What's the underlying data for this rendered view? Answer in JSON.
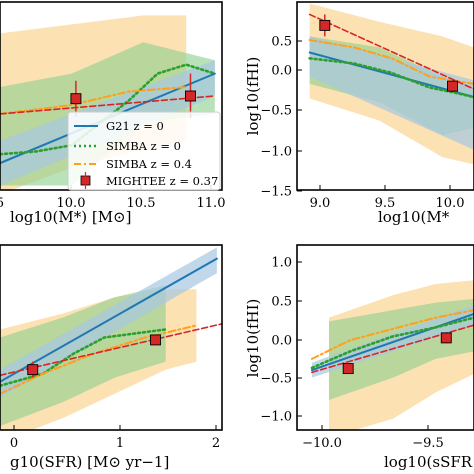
{
  "colors": {
    "g21_line": "#1f77b4",
    "g21_band": "#a6c8e3",
    "simba0_line": "#2ca02c",
    "simba0_band": "#8ccf8c",
    "simba04_line": "#ff9f1c",
    "simba04_band": "#fbd79a",
    "mightee_line": "#d62728",
    "mightee_marker": "#d62728"
  },
  "legend": {
    "g21": "G21 z = 0",
    "simba0": "SIMBA z = 0",
    "simba04": "SIMBA z = 0.4",
    "mightee": "MIGHTEE z = 0.37"
  },
  "panels": {
    "tl": {
      "xlabel": "log10(M*) [M⊙]",
      "xticks": [
        "5",
        "10.0",
        "10.5",
        "11.0"
      ]
    },
    "tr": {
      "ylabel": "log10(fHI)",
      "xlabel": "log10(M*",
      "xticks": [
        "9.0",
        "9.5",
        "10.0"
      ],
      "yticks": [
        "0.5",
        "0.0",
        "−0.5",
        "−1.0",
        "−1.5"
      ]
    },
    "bl": {
      "xlabel": "g10(SFR) [M⊙ yr−1]",
      "xticks": [
        "0",
        "1",
        "2"
      ]
    },
    "br": {
      "ylabel": "log10(fHI)",
      "xlabel": "log10(sSFR",
      "xticks": [
        "−10.0",
        "−9.5"
      ],
      "yticks": [
        "1.0",
        "0.5",
        "0.0",
        "−0.5",
        "−1.0"
      ]
    }
  },
  "chart_data": [
    {
      "panel": "tl",
      "type": "line",
      "xlabel": "log10(M*) [M⊙]",
      "ylabel": "",
      "xlim": [
        9.5,
        11.05
      ],
      "ylim": [
        -0.85,
        1.25
      ],
      "series": [
        {
          "name": "G21 z = 0",
          "x": [
            9.5,
            11.0
          ],
          "y": [
            -0.55,
            0.45
          ]
        },
        {
          "name": "SIMBA z = 0",
          "x": [
            9.5,
            9.75,
            10.0,
            10.2,
            10.4,
            10.6,
            10.8,
            11.0
          ],
          "y": [
            -0.45,
            -0.42,
            -0.35,
            -0.1,
            0.15,
            0.45,
            0.55,
            0.45
          ]
        },
        {
          "name": "SIMBA z = 0.4",
          "x": [
            9.5,
            10.0,
            10.4,
            10.8
          ],
          "y": [
            0.0,
            0.1,
            0.25,
            0.3
          ]
        },
        {
          "name": "MIGHTEE z = 0.37",
          "x": [
            9.5,
            11.0
          ],
          "y": [
            0.0,
            0.2
          ]
        }
      ],
      "mightee_points": {
        "x": [
          10.03,
          10.83
        ],
        "y": [
          0.17,
          0.2
        ],
        "yerr": [
          0.2,
          0.25
        ]
      },
      "bands": [
        {
          "series": "SIMBA z = 0.4",
          "x": [
            9.5,
            10.0,
            10.5,
            10.8
          ],
          "lo": [
            -0.9,
            -0.6,
            -0.4,
            -0.3
          ],
          "hi": [
            0.9,
            1.0,
            1.1,
            1.1
          ]
        },
        {
          "series": "SIMBA z = 0",
          "x": [
            9.5,
            10.0,
            10.5,
            11.0
          ],
          "lo": [
            -0.8,
            -0.8,
            -0.1,
            0.0
          ],
          "hi": [
            0.3,
            0.45,
            0.8,
            0.6
          ]
        },
        {
          "series": "G21 z = 0",
          "x": [
            9.5,
            11.0
          ],
          "lo": [
            -0.8,
            0.2
          ],
          "hi": [
            -0.3,
            0.6
          ]
        }
      ]
    },
    {
      "panel": "tr",
      "type": "line",
      "xlabel": "log10(M*",
      "ylabel": "log10(fHI)",
      "xlim": [
        8.85,
        10.25
      ],
      "ylim": [
        -1.75,
        0.82
      ],
      "series": [
        {
          "name": "G21 z = 0",
          "x": [
            8.95,
            10.25
          ],
          "y": [
            0.13,
            -0.48
          ]
        },
        {
          "name": "SIMBA z = 0",
          "x": [
            8.95,
            9.3,
            9.6,
            9.9,
            10.1,
            10.25
          ],
          "y": [
            0.05,
            -0.02,
            -0.15,
            -0.35,
            -0.42,
            -0.48
          ]
        },
        {
          "name": "SIMBA z = 0.4",
          "x": [
            8.95,
            9.3,
            9.6,
            9.9,
            10.25
          ],
          "y": [
            0.3,
            0.2,
            0.05,
            -0.2,
            -0.3
          ]
        },
        {
          "name": "MIGHTEE z = 0.37",
          "x": [
            8.95,
            10.25
          ],
          "y": [
            0.65,
            -0.37
          ]
        }
      ],
      "mightee_points": {
        "x": [
          9.07,
          10.08
        ],
        "y": [
          0.5,
          -0.33
        ],
        "yerr": [
          0.15,
          0.08
        ]
      },
      "bands": [
        {
          "series": "SIMBA z = 0.4",
          "x": [
            8.95,
            9.5,
            10.0,
            10.25
          ],
          "lo": [
            -0.5,
            -0.8,
            -1.3,
            -1.4
          ],
          "hi": [
            0.8,
            0.55,
            0.35,
            0.2
          ]
        },
        {
          "series": "SIMBA z = 0",
          "x": [
            8.95,
            9.5,
            10.0,
            10.25
          ],
          "lo": [
            -0.3,
            -0.55,
            -1.0,
            -0.9
          ],
          "hi": [
            0.35,
            0.2,
            -0.2,
            -0.35
          ]
        },
        {
          "series": "G21 z = 0",
          "x": [
            8.95,
            10.25
          ],
          "lo": [
            -0.2,
            -1.2
          ],
          "hi": [
            0.35,
            -0.25
          ]
        }
      ]
    },
    {
      "panel": "bl",
      "type": "line",
      "xlabel": "g10(SFR) [M⊙ yr−1]",
      "ylabel": "",
      "xlim": [
        -0.12,
        2.05
      ],
      "ylim": [
        -0.95,
        1.35
      ],
      "series": [
        {
          "name": "G21 z = 0",
          "x": [
            -0.12,
            2.0
          ],
          "y": [
            -0.35,
            1.18
          ]
        },
        {
          "name": "SIMBA z = 0",
          "x": [
            -0.12,
            0.3,
            0.6,
            0.9,
            1.2,
            1.5
          ],
          "y": [
            -0.4,
            -0.25,
            0.0,
            0.2,
            0.25,
            0.3
          ]
        },
        {
          "name": "SIMBA z = 0.4",
          "x": [
            -0.12,
            0.3,
            0.8,
            1.3,
            1.8
          ],
          "y": [
            -0.5,
            -0.25,
            0.0,
            0.2,
            0.35
          ]
        },
        {
          "name": "MIGHTEE z = 0.37",
          "x": [
            -0.12,
            2.05
          ],
          "y": [
            -0.27,
            0.37
          ]
        }
      ],
      "mightee_points": {
        "x": [
          0.2,
          1.4
        ],
        "y": [
          -0.2,
          0.17
        ],
        "yerr": [
          0.1,
          0.05
        ]
      },
      "bands": [
        {
          "series": "SIMBA z = 0.4",
          "x": [
            -0.12,
            0.5,
            1.0,
            1.5,
            1.8
          ],
          "lo": [
            -1.1,
            -0.8,
            -0.5,
            -0.2,
            -0.1
          ],
          "hi": [
            0.3,
            0.5,
            0.7,
            0.8,
            0.8
          ]
        },
        {
          "series": "SIMBA z = 0",
          "x": [
            -0.12,
            0.5,
            1.0,
            1.5
          ],
          "lo": [
            -0.9,
            -0.6,
            -0.3,
            -0.1
          ],
          "hi": [
            0.2,
            0.45,
            0.7,
            0.85
          ]
        },
        {
          "series": "G21 z = 0",
          "x": [
            -0.12,
            2.0
          ],
          "lo": [
            -0.55,
            1.0
          ],
          "hi": [
            -0.2,
            1.32
          ]
        }
      ]
    },
    {
      "panel": "br",
      "type": "line",
      "xlabel": "log10(sSFR",
      "ylabel": "log10(fHI)",
      "xlim": [
        -10.15,
        -9.32
      ],
      "ylim": [
        -1.25,
        1.22
      ],
      "series": [
        {
          "name": "G21 z = 0",
          "x": [
            -10.08,
            -9.32
          ],
          "y": [
            -0.45,
            0.3
          ]
        },
        {
          "name": "SIMBA z = 0",
          "x": [
            -10.08,
            -9.9,
            -9.7,
            -9.5,
            -9.32
          ],
          "y": [
            -0.42,
            -0.2,
            0.0,
            0.12,
            0.25
          ]
        },
        {
          "name": "SIMBA z = 0.4",
          "x": [
            -10.08,
            -9.9,
            -9.7,
            -9.5,
            -9.32
          ],
          "y": [
            -0.3,
            -0.05,
            0.1,
            0.25,
            0.35
          ]
        },
        {
          "name": "MIGHTEE z = 0.37",
          "x": [
            -10.08,
            -9.32
          ],
          "y": [
            -0.48,
            0.15
          ]
        }
      ],
      "mightee_points": {
        "x": [
          -9.91,
          -9.45
        ],
        "y": [
          -0.43,
          -0.02
        ],
        "yerr": [
          0.07,
          0.07
        ]
      },
      "bands": [
        {
          "series": "SIMBA z = 0.4",
          "x": [
            -10.0,
            -9.7,
            -9.5,
            -9.32
          ],
          "lo": [
            -1.35,
            -1.1,
            -0.75,
            -0.5
          ],
          "hi": [
            0.25,
            0.55,
            0.7,
            0.75
          ]
        },
        {
          "series": "SIMBA z = 0",
          "x": [
            -10.0,
            -9.7,
            -9.5,
            -9.32
          ],
          "lo": [
            -0.85,
            -0.55,
            -0.3,
            -0.2
          ],
          "hi": [
            0.2,
            0.35,
            0.45,
            0.5
          ]
        },
        {
          "series": "G21 z = 0",
          "x": [
            -10.08,
            -9.32
          ],
          "lo": [
            -0.55,
            0.15
          ],
          "hi": [
            -0.35,
            0.42
          ]
        }
      ]
    }
  ]
}
